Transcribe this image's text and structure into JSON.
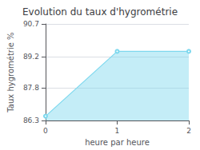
{
  "chart_data": {
    "type": "line",
    "title": "Evolution du taux d'hygrométrie",
    "xlabel": "heure par heure",
    "ylabel": "Taux hygrométrie %",
    "x": [
      0,
      1,
      2
    ],
    "values": [
      86.5,
      89.45,
      89.45
    ],
    "color": "#7dd8ee",
    "xlim": [
      0,
      2
    ],
    "xticks": [
      0,
      1,
      2
    ],
    "ylim": [
      86.3,
      90.7
    ],
    "yticks": [
      86.3,
      87.8,
      89.2,
      90.7
    ],
    "grid": true
  }
}
